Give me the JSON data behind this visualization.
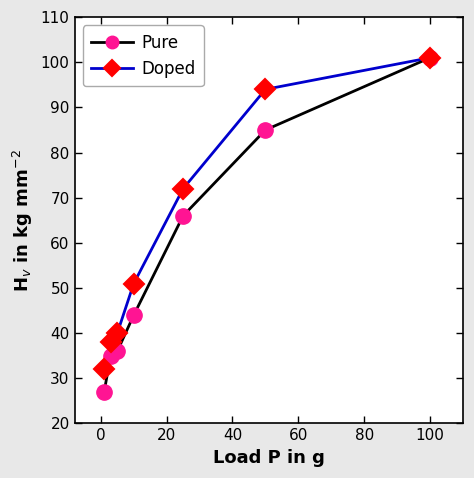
{
  "pure_x": [
    1,
    3,
    5,
    10,
    25,
    50,
    100
  ],
  "pure_y": [
    27,
    35,
    36,
    44,
    66,
    85,
    101
  ],
  "doped_x": [
    1,
    3,
    5,
    10,
    25,
    50,
    100
  ],
  "doped_y": [
    32,
    38,
    40,
    51,
    72,
    94,
    101
  ],
  "pure_color": "#FF1493",
  "doped_color": "#FF0000",
  "pure_line_color": "#000000",
  "doped_line_color": "#0000CD",
  "xlabel": "Load P in g",
  "ylabel": "H$_v$ in kg mm$^{-2}$",
  "xlim": [
    -8,
    110
  ],
  "ylim": [
    20,
    110
  ],
  "xticks": [
    0,
    20,
    40,
    60,
    80,
    100
  ],
  "yticks": [
    20,
    30,
    40,
    50,
    60,
    70,
    80,
    90,
    100,
    110
  ],
  "legend_labels": [
    "Pure",
    "Doped"
  ],
  "pure_marker": "o",
  "doped_marker": "D",
  "markersize_pure": 11,
  "markersize_doped": 10,
  "linewidth": 2.0,
  "fontsize_label": 13,
  "fontsize_tick": 11,
  "fontsize_legend": 12,
  "outer_bg": "#e8e8e8",
  "inner_bg": "#ffffff"
}
